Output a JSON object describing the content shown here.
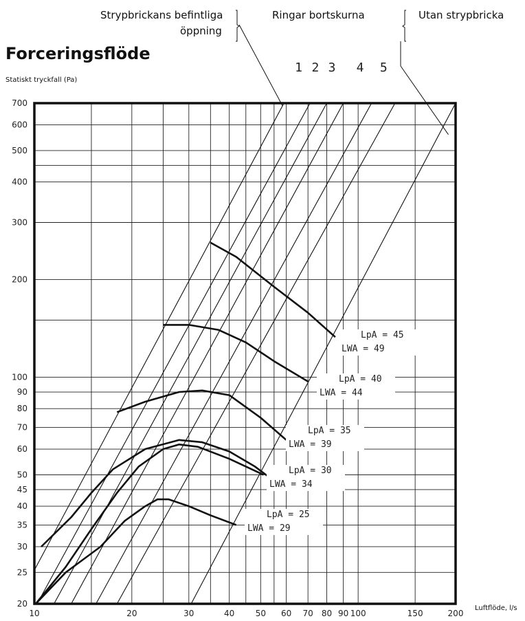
{
  "header": {
    "label_a_line1": "Strypbrickans befintliga",
    "label_a_line2": "öppning",
    "label_b": "Ringar bortskurna",
    "label_c": "Utan strypbricka"
  },
  "chart_data": {
    "type": "line",
    "title": "Forceringsflöde",
    "ylabel": "Statiskt tryckfall (Pa)",
    "xlabel": "Luftflöde, l/s",
    "x_scale": "log",
    "y_scale": "log",
    "xlim": [
      10,
      200
    ],
    "ylim": [
      20,
      700
    ],
    "x_ticks": [
      10,
      20,
      30,
      40,
      50,
      60,
      70,
      80,
      90,
      100,
      150,
      200
    ],
    "x_tick_labels": [
      "10",
      "20",
      "30",
      "40",
      "50",
      "60",
      "70",
      "80",
      "90",
      "100",
      "150",
      "200"
    ],
    "y_ticks": [
      20,
      25,
      30,
      35,
      40,
      45,
      50,
      60,
      70,
      80,
      90,
      100,
      200,
      300,
      400,
      500,
      600,
      700
    ],
    "y_tick_labels": [
      "20",
      "25",
      "30",
      "35",
      "40",
      "45",
      "50",
      "60",
      "70",
      "80",
      "90",
      "100",
      "200",
      "300",
      "400",
      "500",
      "600",
      "700"
    ],
    "x_minor_gridlines": [
      15,
      25,
      35,
      45,
      55
    ],
    "y_minor_gridlines": [
      150,
      450
    ],
    "grid": true,
    "position_lines": [
      {
        "name": "",
        "x": [
          8.8,
          59
        ]
      },
      {
        "name": "1",
        "x": [
          10.2,
          71
        ]
      },
      {
        "name": "2",
        "x": [
          11.5,
          80
        ]
      },
      {
        "name": "3",
        "x": [
          13.0,
          90
        ]
      },
      {
        "name": "4",
        "x": [
          15.5,
          110
        ]
      },
      {
        "name": "5",
        "x": [
          18.0,
          130
        ]
      },
      {
        "name": "",
        "x": [
          30.5,
          200
        ]
      }
    ],
    "position_line_y": [
      20,
      700
    ],
    "sound_curves": [
      {
        "lpa_label": "LpA = 25",
        "lwa_label": "LWA = 29",
        "x": [
          10.1,
          12.5,
          16,
          19,
          22,
          24,
          26,
          30,
          35,
          42
        ],
        "y": [
          20,
          25,
          30,
          36,
          40,
          42,
          42,
          40,
          37.5,
          35
        ]
      },
      {
        "lpa_label": "LpA = 30",
        "lwa_label": "LWA = 34",
        "x": [
          10.1,
          12.5,
          15,
          18,
          21,
          25,
          28,
          32,
          40,
          51
        ],
        "y": [
          20,
          26,
          34,
          44,
          53,
          60,
          62,
          61,
          56,
          50
        ]
      },
      {
        "lpa_label": "LpA = 35",
        "lwa_label": "LWA = 39",
        "x": [
          10.5,
          13,
          15,
          17.5,
          22,
          28,
          33,
          40,
          48,
          58
        ],
        "y": [
          30,
          37,
          44,
          52,
          60,
          64,
          63,
          59,
          53,
          46
        ]
      },
      {
        "lpa_label": "LpA = 40",
        "lwa_label": "LWA = 44",
        "x": [
          18,
          22,
          28,
          33,
          40,
          50,
          60
        ],
        "y": [
          78,
          84,
          90,
          91,
          88,
          75,
          64
        ]
      },
      {
        "lpa_label": "LpA = 45",
        "lwa_label": "LWA = 49",
        "x": [
          25,
          30,
          37,
          45,
          55,
          70
        ],
        "y": [
          145,
          145,
          140,
          128,
          112,
          97
        ]
      },
      {
        "lpa_label": "",
        "lwa_label": "",
        "x": [
          35,
          42,
          55,
          70,
          85
        ],
        "y": [
          260,
          235,
          190,
          158,
          133
        ]
      }
    ]
  }
}
